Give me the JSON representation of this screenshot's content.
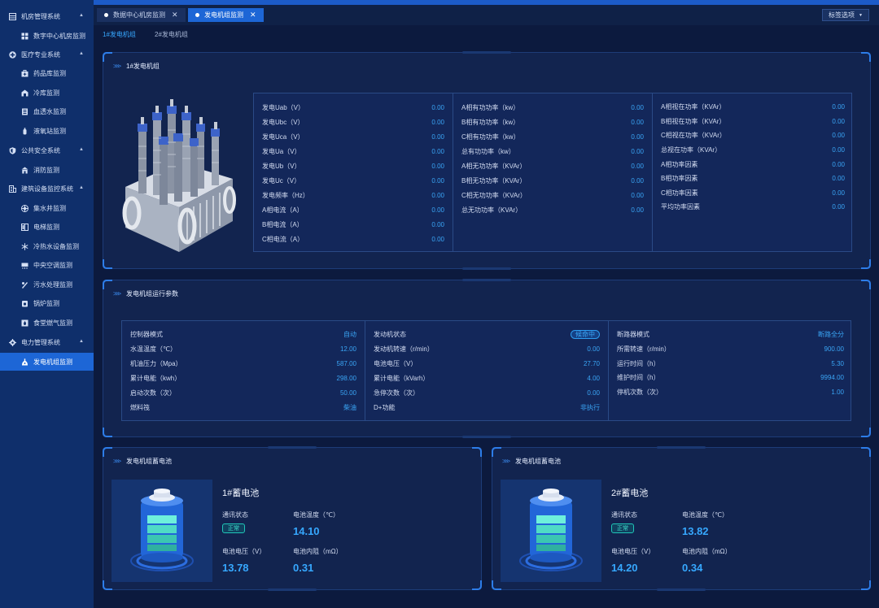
{
  "sidebar": {
    "items": [
      {
        "type": "group",
        "label": "机房管理系统",
        "icon": "server-room-icon",
        "expanded": true
      },
      {
        "type": "sub",
        "label": "数字中心机房监测",
        "icon": "monitor-grid-icon"
      },
      {
        "type": "group",
        "label": "医疗专业系统",
        "icon": "medical-cross-icon",
        "expanded": true
      },
      {
        "type": "sub",
        "label": "药品库监测",
        "icon": "medicine-box-icon"
      },
      {
        "type": "sub",
        "label": "冷库监测",
        "icon": "cold-storage-icon"
      },
      {
        "type": "sub",
        "label": "血透水监测",
        "icon": "dialysis-water-icon"
      },
      {
        "type": "sub",
        "label": "液氧站监测",
        "icon": "oxygen-tank-icon"
      },
      {
        "type": "group",
        "label": "公共安全系统",
        "icon": "shield-icon",
        "expanded": true
      },
      {
        "type": "sub",
        "label": "消防监测",
        "icon": "fire-station-icon"
      },
      {
        "type": "group",
        "label": "建筑设备监控系统",
        "icon": "building-icon",
        "expanded": true
      },
      {
        "type": "sub",
        "label": "集水井监测",
        "icon": "sump-well-icon"
      },
      {
        "type": "sub",
        "label": "电梯监测",
        "icon": "elevator-icon"
      },
      {
        "type": "sub",
        "label": "冷热水设备监测",
        "icon": "snowflake-icon"
      },
      {
        "type": "sub",
        "label": "中央空调监测",
        "icon": "air-conditioner-icon"
      },
      {
        "type": "sub",
        "label": "污水处理监测",
        "icon": "sewage-icon"
      },
      {
        "type": "sub",
        "label": "锅炉监测",
        "icon": "boiler-icon"
      },
      {
        "type": "sub",
        "label": "食堂燃气监测",
        "icon": "gas-icon"
      },
      {
        "type": "group",
        "label": "电力管理系统",
        "icon": "power-gear-icon",
        "expanded": true
      },
      {
        "type": "sub",
        "label": "发电机组监测",
        "icon": "generator-icon",
        "active": true
      }
    ]
  },
  "tabs": [
    {
      "label": "数据中心机房监测",
      "active": false
    },
    {
      "label": "发电机组监测",
      "active": true
    }
  ],
  "tab_options_label": "标签选项",
  "subtabs": [
    {
      "label": "1#发电机组",
      "active": true
    },
    {
      "label": "2#发电机组",
      "active": false
    }
  ],
  "generator": {
    "title": "1#发电机组",
    "columns": [
      [
        {
          "label": "发电Uab（V）",
          "value": "0.00"
        },
        {
          "label": "发电Ubc（V）",
          "value": "0.00"
        },
        {
          "label": "发电Uca（V）",
          "value": "0.00"
        },
        {
          "label": "发电Ua（V）",
          "value": "0.00"
        },
        {
          "label": "发电Ub（V）",
          "value": "0.00"
        },
        {
          "label": "发电Uc（V）",
          "value": "0.00"
        },
        {
          "label": "发电频率（Hz）",
          "value": "0.00"
        },
        {
          "label": "A相电流（A）",
          "value": "0.00"
        },
        {
          "label": "B相电流（A）",
          "value": "0.00"
        },
        {
          "label": "C相电流（A）",
          "value": "0.00"
        }
      ],
      [
        {
          "label": "A相有功功率（kw）",
          "value": "0.00"
        },
        {
          "label": "B相有功功率（kw）",
          "value": "0.00"
        },
        {
          "label": "C相有功功率（kw）",
          "value": "0.00"
        },
        {
          "label": "总有功功率（kw）",
          "value": "0.00"
        },
        {
          "label": "A相无功功率（KVAr）",
          "value": "0.00"
        },
        {
          "label": "B相无功功率（KVAr）",
          "value": "0.00"
        },
        {
          "label": "C相无功功率（KVAr）",
          "value": "0.00"
        },
        {
          "label": "总无功功率（KVAr）",
          "value": "0.00"
        }
      ],
      [
        {
          "label": "A相视在功率（KVAr）",
          "value": "0.00"
        },
        {
          "label": "B相视在功率（KVAr）",
          "value": "0.00"
        },
        {
          "label": "C相视在功率（KVAr）",
          "value": "0.00"
        },
        {
          "label": "总视在功率（KVAr）",
          "value": "0.00"
        },
        {
          "label": "A相功率因素",
          "value": "0.00"
        },
        {
          "label": "B相功率因素",
          "value": "0.00"
        },
        {
          "label": "C相功率因素",
          "value": "0.00"
        },
        {
          "label": "平均功率因素",
          "value": "0.00"
        }
      ]
    ]
  },
  "runtime": {
    "title": "发电机组运行参数",
    "columns": [
      [
        {
          "label": "控制器模式",
          "value": "自动"
        },
        {
          "label": "水温温度（℃）",
          "value": "12.00"
        },
        {
          "label": "机油压力（Mpa）",
          "value": "587.00"
        },
        {
          "label": "累计电能（kwh）",
          "value": "298.00"
        },
        {
          "label": "启动次数（次）",
          "value": "50.00"
        },
        {
          "label": "燃料筏",
          "value": "柴油"
        }
      ],
      [
        {
          "label": "发动机状态",
          "value": "候命中",
          "pill": true
        },
        {
          "label": "发动机转速（r/min）",
          "value": "0.00"
        },
        {
          "label": "电池电压（V）",
          "value": "27.70"
        },
        {
          "label": "累计电能（kVarh）",
          "value": "4.00"
        },
        {
          "label": "急停次数（次）",
          "value": "0.00"
        },
        {
          "label": "D+功能",
          "value": "非执行"
        }
      ],
      [
        {
          "label": "断路器模式",
          "value": "断路全分"
        },
        {
          "label": "所需转速（r/min）",
          "value": "900.00"
        },
        {
          "label": "运行时间（h）",
          "value": "5.30"
        },
        {
          "label": "维护时间（h）",
          "value": "9994.00"
        },
        {
          "label": "停机次数（次）",
          "value": "1.00"
        }
      ]
    ]
  },
  "batteries": [
    {
      "panel_title": "发电机组蓄电池",
      "name": "1#蓄电池",
      "comm_label": "通讯状态",
      "comm_status": "正常",
      "temp_label": "电池温度（℃）",
      "temp": "14.10",
      "volt_label": "电池电压（V）",
      "volt": "13.78",
      "res_label": "电池内阻（mΩ）",
      "res": "0.31"
    },
    {
      "panel_title": "发电机组蓄电池",
      "name": "2#蓄电池",
      "comm_label": "通讯状态",
      "comm_status": "正常",
      "temp_label": "电池温度（℃）",
      "temp": "13.82",
      "volt_label": "电池电压（V）",
      "volt": "14.20",
      "res_label": "电池内阻（mΩ）",
      "res": "0.34"
    }
  ],
  "colors": {
    "accent": "#1d66d6",
    "value": "#3aa5f5",
    "status_ok": "#3fe0cf",
    "background": "#0c1a3e"
  }
}
